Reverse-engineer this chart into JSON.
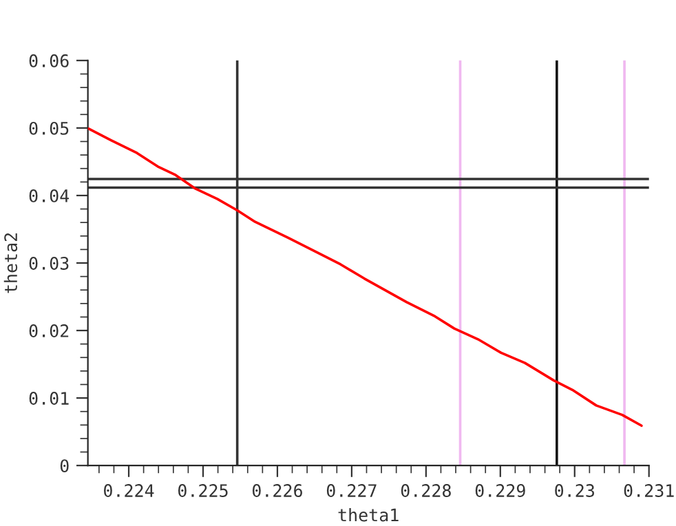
{
  "chart_data": {
    "type": "line",
    "xlabel": "theta1",
    "ylabel": "theta2",
    "x": [
      0.22346,
      0.22376,
      0.22411,
      0.22439,
      0.22462,
      0.2249,
      0.22519,
      0.22546,
      0.2257,
      0.22615,
      0.22653,
      0.22685,
      0.22717,
      0.22774,
      0.22812,
      0.22838,
      0.2287,
      0.22901,
      0.22933,
      0.22972,
      0.22997,
      0.23029,
      0.23064,
      0.2309
    ],
    "series": [
      {
        "color": "#ff0000",
        "values": [
          0.0499,
          0.0482,
          0.0463,
          0.0443,
          0.0431,
          0.041,
          0.0395,
          0.0378,
          0.0361,
          0.0337,
          0.0316,
          0.0298,
          0.0277,
          0.0242,
          0.0221,
          0.0203,
          0.0187,
          0.0167,
          0.0152,
          0.0126,
          0.0112,
          0.0089,
          0.0075,
          0.0059
        ]
      }
    ],
    "ref_lines": [
      {
        "axis": "x",
        "value": 0.22546,
        "color": "#333333"
      },
      {
        "axis": "x",
        "value": 0.22846,
        "color": "#f0b8f0"
      },
      {
        "axis": "x",
        "value": 0.22976,
        "color": "#111111"
      },
      {
        "axis": "x",
        "value": 0.23067,
        "color": "#f0b8f0"
      },
      {
        "axis": "y",
        "value": 0.04245,
        "color": "#333333"
      },
      {
        "axis": "y",
        "value": 0.04117,
        "color": "#333333"
      }
    ],
    "xlim": [
      0.22345,
      0.231
    ],
    "ylim": [
      0,
      0.06
    ],
    "xticks": [
      0.224,
      0.225,
      0.226,
      0.227,
      0.228,
      0.229,
      {
        "value": 0.23,
        "label": "0.23"
      },
      0.231
    ],
    "yticks": [
      {
        "value": 0,
        "label": "0"
      },
      0.01,
      0.02,
      0.03,
      0.04,
      0.05,
      0.06
    ],
    "grid": false,
    "marker": "none",
    "line_style": "solid"
  }
}
